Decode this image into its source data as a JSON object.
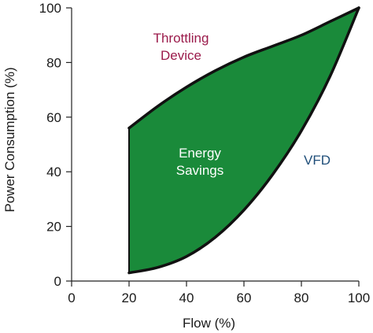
{
  "chart_data": {
    "type": "area",
    "xlabel": "Flow (%)",
    "ylabel": "Power Consumption (%)",
    "xlim": [
      0,
      100
    ],
    "ylim": [
      0,
      100
    ],
    "x_ticks": [
      "0",
      "20",
      "40",
      "60",
      "80",
      "100"
    ],
    "y_ticks": [
      "0",
      "20",
      "40",
      "60",
      "80",
      "100"
    ],
    "grid": false,
    "series": [
      {
        "name": "Throttling Device",
        "color": "#9b1b4b",
        "x": [
          20,
          30,
          40,
          50,
          60,
          70,
          80,
          90,
          100
        ],
        "y": [
          56,
          64,
          71,
          77,
          82,
          86,
          90,
          95,
          100
        ]
      },
      {
        "name": "VFD",
        "color": "#1f4e79",
        "x": [
          20,
          30,
          40,
          50,
          60,
          70,
          80,
          90,
          100
        ],
        "y": [
          3,
          5,
          9,
          16,
          26,
          39,
          55,
          75,
          100
        ]
      }
    ],
    "fill": {
      "color": "#1a8a3a",
      "between": [
        "Throttling Device",
        "VFD"
      ],
      "label_lines": [
        "Energy",
        "Savings"
      ]
    },
    "annotations": [
      {
        "series": "Throttling Device",
        "lines": [
          "Throttling",
          "Device"
        ]
      },
      {
        "series": "VFD",
        "lines": [
          "VFD"
        ]
      }
    ]
  }
}
